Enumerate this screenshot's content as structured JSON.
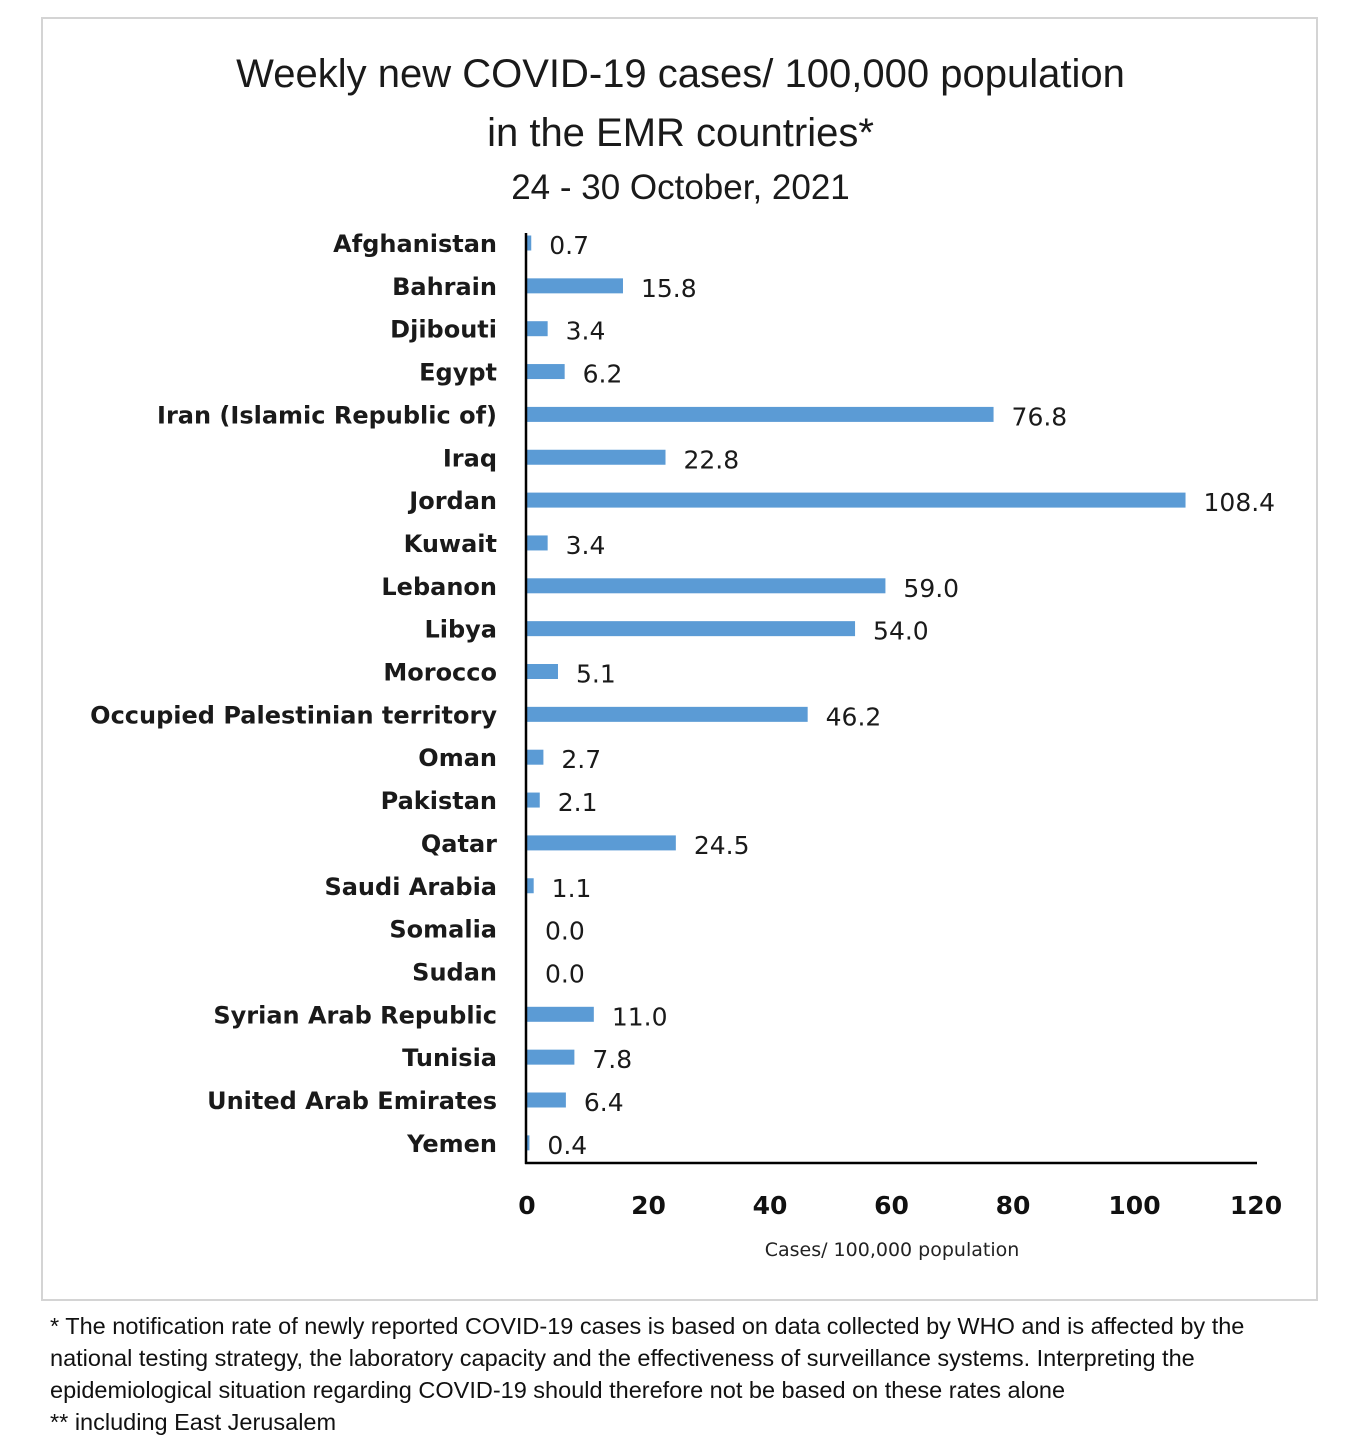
{
  "chart_data": {
    "type": "bar",
    "orientation": "horizontal",
    "title": "Weekly new COVID-19 cases/ 100,000 population",
    "title_line2": "in the EMR countries*",
    "subtitle": "24 - 30 October, 2021",
    "xlabel": "Cases/ 100,000 population",
    "ylabel": "",
    "xlim": [
      0,
      120
    ],
    "xticks": [
      0,
      20,
      40,
      60,
      80,
      100,
      120
    ],
    "grid": false,
    "legend": "none",
    "bar_color": "#5b9bd5",
    "categories": [
      "Afghanistan",
      "Bahrain",
      "Djibouti",
      "Egypt",
      "Iran (Islamic Republic of)",
      "Iraq",
      "Jordan",
      "Kuwait",
      "Lebanon",
      "Libya",
      "Morocco",
      "Occupied Palestinian territory",
      "Oman",
      "Pakistan",
      "Qatar",
      "Saudi Arabia",
      "Somalia",
      "Sudan",
      "Syrian Arab Republic",
      "Tunisia",
      "United Arab Emirates",
      "Yemen"
    ],
    "values": [
      0.7,
      15.8,
      3.4,
      6.2,
      76.8,
      22.8,
      108.4,
      3.4,
      59.0,
      54.0,
      5.1,
      46.2,
      2.7,
      2.1,
      24.5,
      1.1,
      0.0,
      0.0,
      11.0,
      7.8,
      6.4,
      0.4
    ],
    "value_labels": [
      "0.7",
      "15.8",
      "3.4",
      "6.2",
      "76.8",
      "22.8",
      "108.4",
      "3.4",
      "59.0",
      "54.0",
      "5.1",
      "46.2",
      "2.7",
      "2.1",
      "24.5",
      "1.1",
      "0.0",
      "0.0",
      "11.0",
      "7.8",
      "6.4",
      "0.4"
    ]
  },
  "footnotes": [
    "* The notification rate of newly reported COVID-19 cases is based on data collected by WHO and is affected by the",
    "national testing strategy, the laboratory capacity and the effectiveness of surveillance systems. Interpreting the",
    "epidemiological situation regarding COVID-19 should therefore not be based on these rates alone",
    "** including East Jerusalem"
  ]
}
